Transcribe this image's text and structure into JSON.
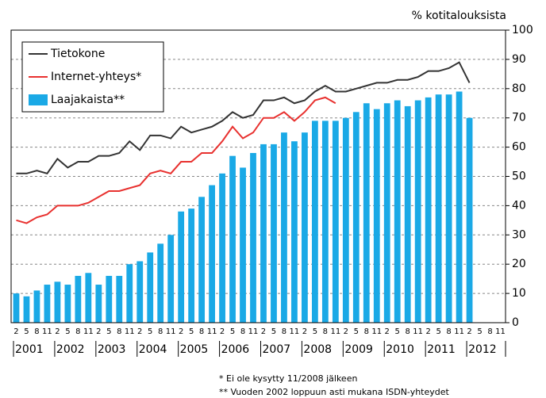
{
  "chart_data": {
    "type": "bar-line",
    "y_axis_label": "% kotitalouksista",
    "categories": [
      "2",
      "5",
      "8",
      "11",
      "2",
      "5",
      "8",
      "11",
      "2",
      "5",
      "8",
      "11",
      "2",
      "5",
      "8",
      "11",
      "2",
      "5",
      "8",
      "11",
      "2",
      "5",
      "8",
      "11",
      "2",
      "5",
      "8",
      "11",
      "2",
      "5",
      "8",
      "11",
      "2",
      "5",
      "8",
      "11",
      "2",
      "5",
      "8",
      "11",
      "2",
      "5",
      "8",
      "11",
      "2",
      "5",
      "8",
      "11"
    ],
    "years": [
      "2001",
      "2002",
      "2003",
      "2004",
      "2005",
      "2006",
      "2007",
      "2008",
      "2009",
      "2010",
      "2011",
      "2012"
    ],
    "series": [
      {
        "name": "Tietokone",
        "kind": "line",
        "color": "#333333",
        "values": [
          51,
          51,
          52,
          51,
          56,
          53,
          55,
          55,
          57,
          57,
          58,
          62,
          59,
          64,
          64,
          63,
          67,
          65,
          66,
          67,
          69,
          72,
          70,
          71,
          76,
          76,
          77,
          75,
          76,
          79,
          81,
          79,
          79,
          80,
          81,
          82,
          82,
          83,
          83,
          84,
          86,
          86,
          87,
          89,
          82,
          null,
          null,
          null
        ]
      },
      {
        "name": "Internet-yhteys*",
        "kind": "line",
        "color": "#e8312f",
        "values": [
          35,
          34,
          36,
          37,
          40,
          40,
          40,
          41,
          43,
          45,
          45,
          46,
          47,
          51,
          52,
          51,
          55,
          55,
          58,
          58,
          62,
          67,
          63,
          65,
          70,
          70,
          72,
          69,
          72,
          76,
          77,
          75,
          null,
          null,
          null,
          null,
          null,
          null,
          null,
          null,
          null,
          null,
          null,
          null,
          null,
          null,
          null,
          null
        ]
      },
      {
        "name": "Laajakaista**",
        "kind": "bar",
        "color": "#1aa9e6",
        "values": [
          10,
          9,
          11,
          13,
          14,
          13,
          16,
          17,
          13,
          16,
          16,
          20,
          21,
          24,
          27,
          30,
          38,
          39,
          43,
          47,
          51,
          57,
          53,
          58,
          61,
          61,
          65,
          62,
          65,
          69,
          69,
          69,
          70,
          72,
          75,
          73,
          75,
          76,
          74,
          76,
          77,
          78,
          78,
          79,
          70,
          null,
          null,
          null
        ]
      }
    ],
    "ylim": [
      0,
      100
    ],
    "yticks": [
      0,
      10,
      20,
      30,
      40,
      50,
      60,
      70,
      80,
      90,
      100
    ],
    "grid": true,
    "footnotes": [
      "* Ei ole kysytty 11/2008 jälkeen",
      "** Vuoden 2002 loppuun asti mukana ISDN-yhteydet"
    ]
  }
}
